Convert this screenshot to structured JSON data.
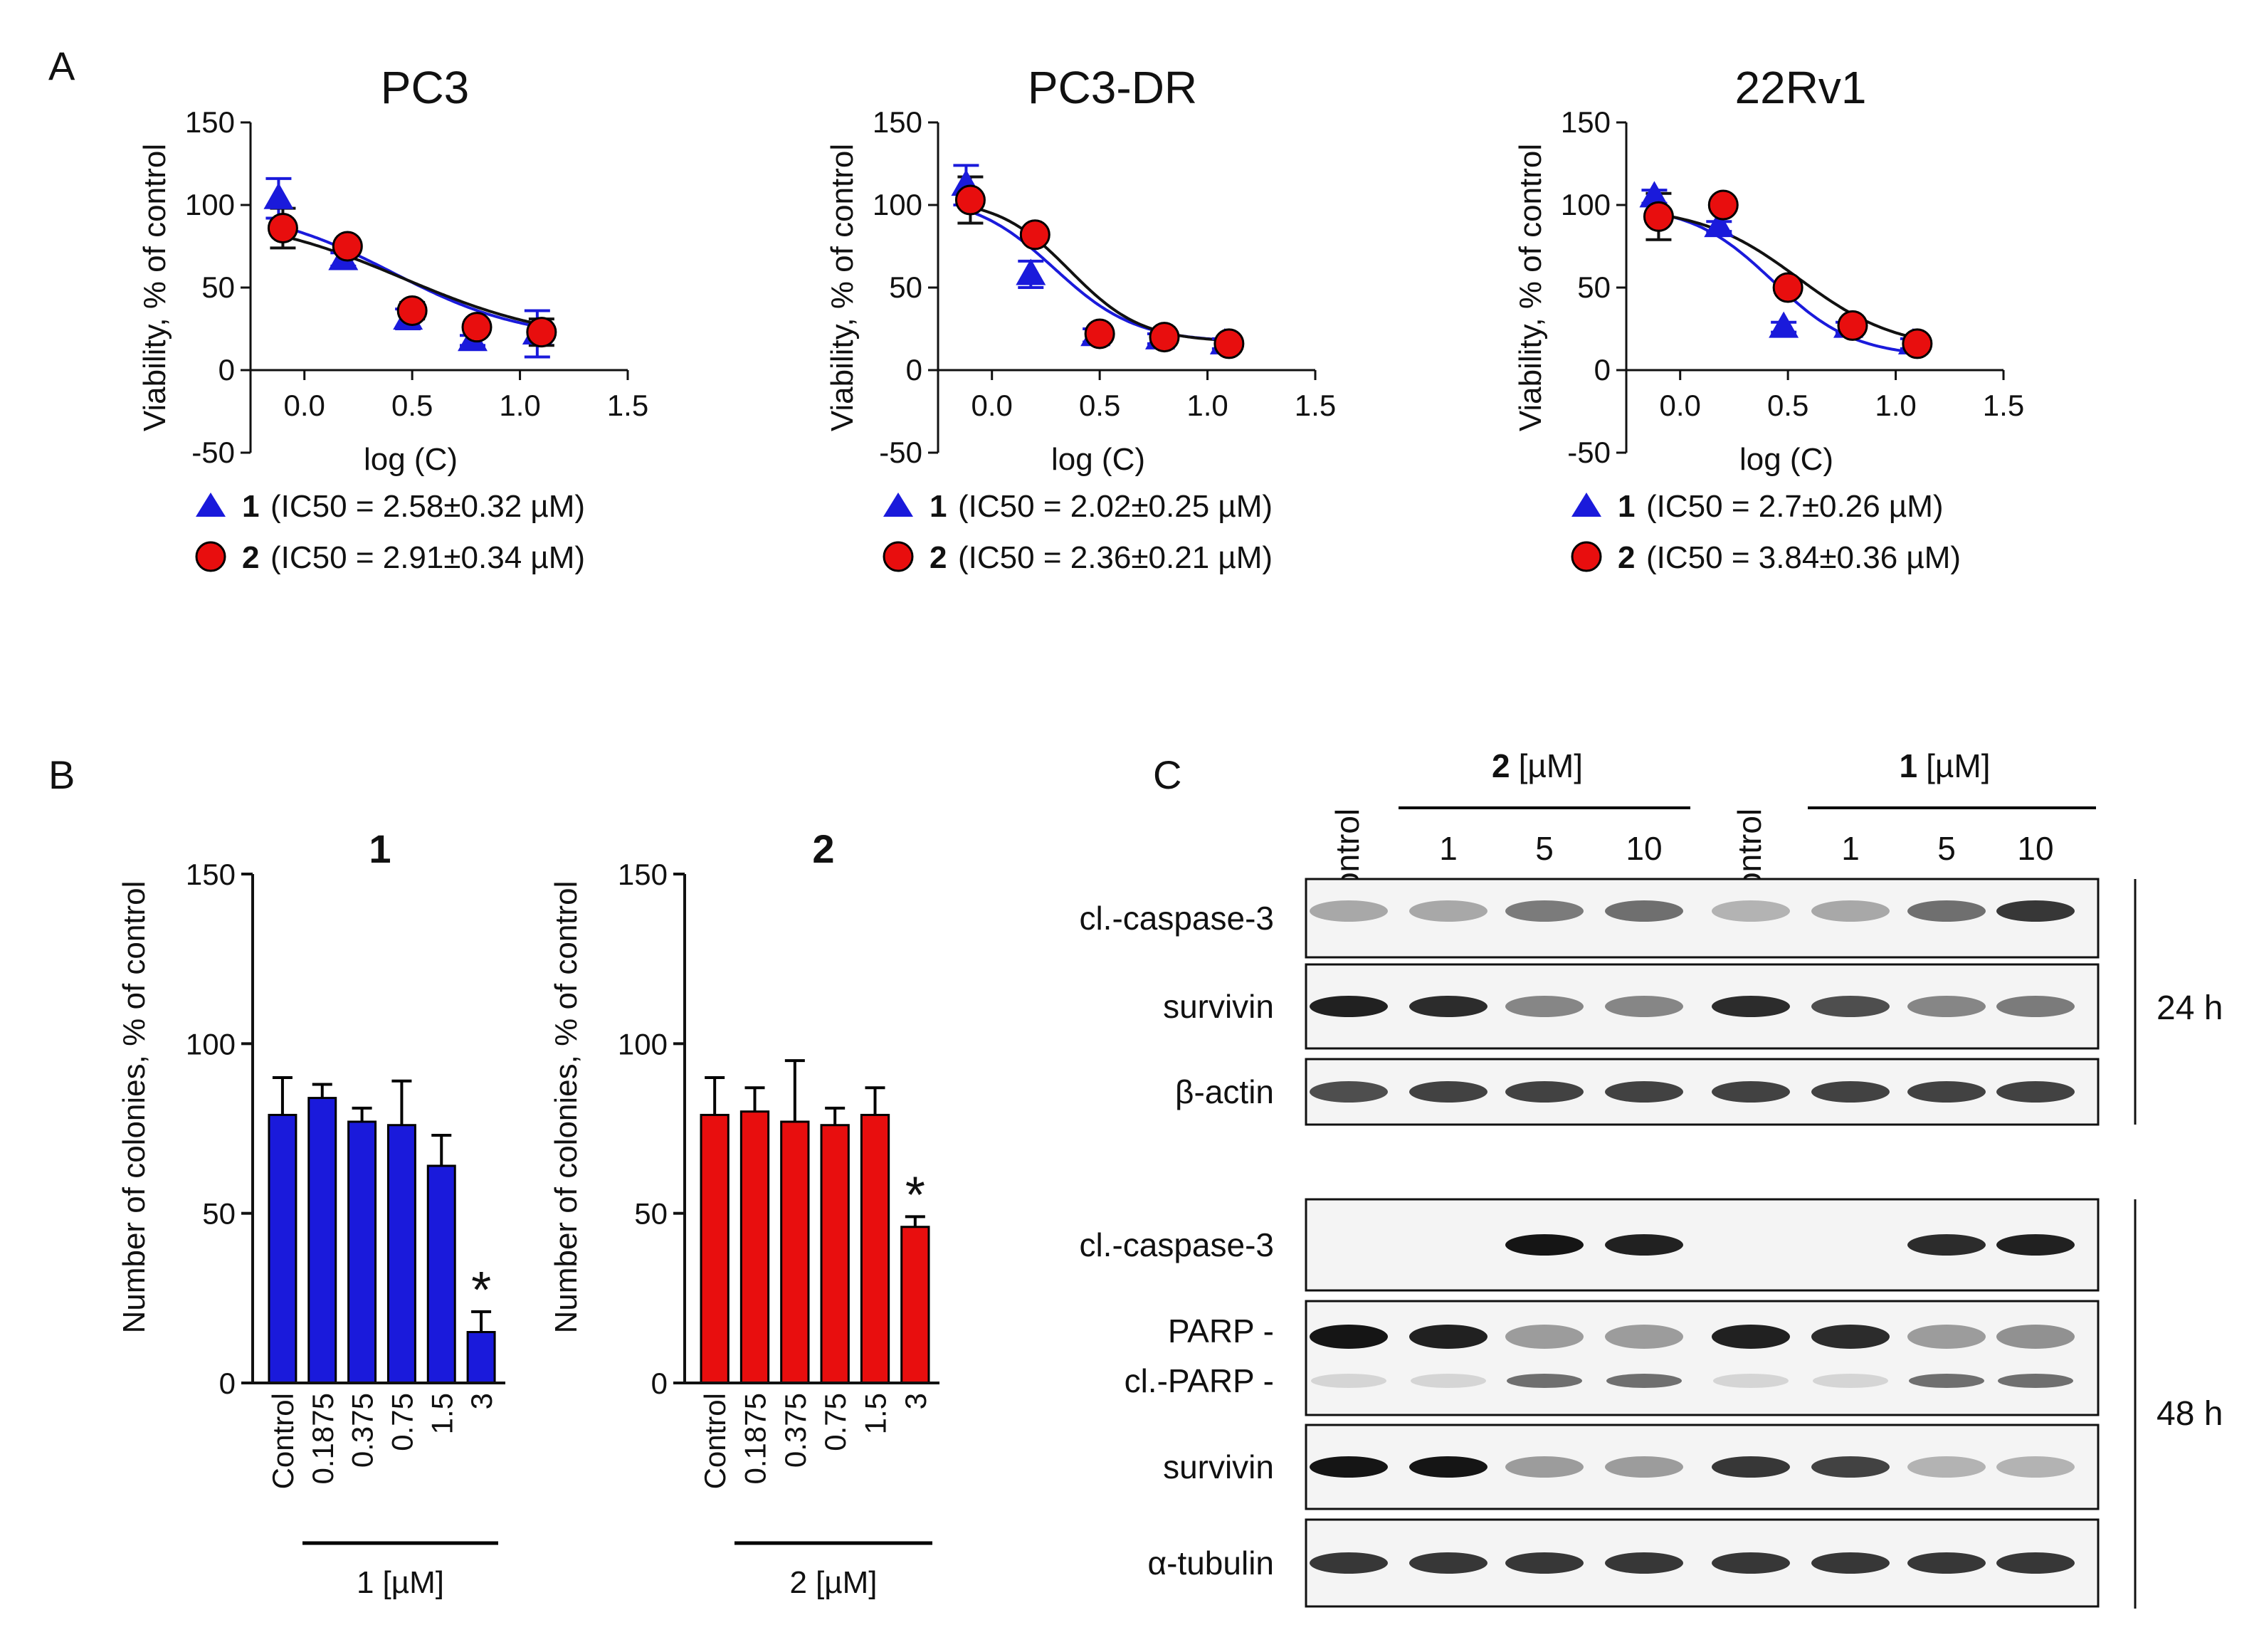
{
  "panel_labels": {
    "A": "A",
    "B": "B",
    "C": "C"
  },
  "colors": {
    "compound1": "#1a1adb",
    "compound2": "#e80e0e",
    "fit2": "#111111",
    "axis": "#111111"
  },
  "chart_data": [
    {
      "type": "scatter",
      "title": "PC3",
      "xlabel": "log (C)",
      "ylabel": "Viability, % of control",
      "xlim": [
        -0.25,
        1.5
      ],
      "ylim": [
        -50,
        150
      ],
      "xticks": [
        "0.0",
        "0.5",
        "1.0",
        "1.5"
      ],
      "yticks": [
        "150",
        "100",
        "50",
        "0",
        "-50"
      ],
      "legend_placement": "bottom",
      "series": [
        {
          "name": "1",
          "legend_suffix": "(IC50 = 2.58±0.32 µM)",
          "marker": "triangle",
          "x": [
            -0.1,
            0.2,
            0.5,
            0.8,
            1.1
          ],
          "y": [
            104,
            67,
            31,
            18,
            22
          ],
          "err": [
            12,
            4,
            6,
            3,
            14
          ],
          "fit": {
            "top": 100,
            "bottom": 18,
            "logIC50": 0.41,
            "hill": 1.4
          }
        },
        {
          "name": "2",
          "legend_suffix": "(IC50 = 2.91±0.34 µM)",
          "marker": "circle",
          "x": [
            -0.1,
            0.2,
            0.5,
            0.8,
            1.1
          ],
          "y": [
            86,
            75,
            36,
            26,
            23
          ],
          "err": [
            12,
            4,
            5,
            4,
            8
          ],
          "fit": {
            "top": 95,
            "bottom": 16,
            "logIC50": 0.46,
            "hill": 1.2
          }
        }
      ]
    },
    {
      "type": "scatter",
      "title": "PC3-DR",
      "xlabel": "log (C)",
      "ylabel": "Viability, % of control",
      "xlim": [
        -0.25,
        1.5
      ],
      "ylim": [
        -50,
        150
      ],
      "xticks": [
        "0.0",
        "0.5",
        "1.0",
        "1.5"
      ],
      "yticks": [
        "150",
        "100",
        "50",
        "0",
        "-50"
      ],
      "legend_placement": "bottom",
      "series": [
        {
          "name": "1",
          "legend_suffix": "(IC50 = 2.02±0.25 µM)",
          "marker": "triangle",
          "x": [
            -0.1,
            0.2,
            0.5,
            0.8,
            1.1
          ],
          "y": [
            112,
            58,
            21,
            19,
            16
          ],
          "err": [
            12,
            8,
            4,
            3,
            3
          ],
          "fit": {
            "top": 106,
            "bottom": 17,
            "logIC50": 0.29,
            "hill": 2.3
          }
        },
        {
          "name": "2",
          "legend_suffix": "(IC50 = 2.36±0.21 µM)",
          "marker": "circle",
          "x": [
            -0.1,
            0.2,
            0.5,
            0.8,
            1.1
          ],
          "y": [
            103,
            82,
            22,
            20,
            16
          ],
          "err": [
            14,
            4,
            4,
            3,
            3
          ],
          "fit": {
            "top": 104,
            "bottom": 17,
            "logIC50": 0.36,
            "hill": 2.6
          }
        }
      ]
    },
    {
      "type": "scatter",
      "title": "22Rv1",
      "xlabel": "log (C)",
      "ylabel": "Viability, % of control",
      "xlim": [
        -0.25,
        1.5
      ],
      "ylim": [
        -50,
        150
      ],
      "xticks": [
        "0.0",
        "0.5",
        "1.0",
        "1.5"
      ],
      "yticks": [
        "150",
        "100",
        "50",
        "0",
        "-50"
      ],
      "legend_placement": "bottom",
      "series": [
        {
          "name": "1",
          "legend_suffix": "(IC50 = 2.7±0.26 µM)",
          "marker": "triangle",
          "x": [
            -0.1,
            0.2,
            0.5,
            0.8,
            1.1
          ],
          "y": [
            105,
            87,
            26,
            26,
            16
          ],
          "err": [
            4,
            3,
            3,
            3,
            3
          ],
          "fit": {
            "top": 100,
            "bottom": 8,
            "logIC50": 0.43,
            "hill": 2.3
          }
        },
        {
          "name": "2",
          "legend_suffix": "(IC50 = 3.84±0.36 µM)",
          "marker": "circle",
          "x": [
            -0.1,
            0.2,
            0.5,
            0.8,
            1.1
          ],
          "y": [
            93,
            100,
            50,
            27,
            16
          ],
          "err": [
            14,
            4,
            4,
            3,
            3
          ],
          "fit": {
            "top": 99,
            "bottom": 12,
            "logIC50": 0.55,
            "hill": 1.9
          }
        }
      ]
    },
    {
      "type": "bar",
      "title": "1",
      "ylabel": "Number of colonies, % of control",
      "ylim": [
        0,
        150
      ],
      "yticks": [
        "150",
        "100",
        "50",
        "0"
      ],
      "categories": [
        "Control",
        "0.1875",
        "0.375",
        "0.75",
        "1.5",
        "3"
      ],
      "values": [
        79,
        84,
        77,
        76,
        64,
        15
      ],
      "err": [
        11,
        4,
        4,
        13,
        9,
        6
      ],
      "significant": [
        false,
        false,
        false,
        false,
        false,
        true
      ],
      "significance_mark": "*",
      "group_label_number": "1",
      "group_label_unit": "[µM]"
    },
    {
      "type": "bar",
      "title": "2",
      "ylabel": "Number of colonies, % of control",
      "ylim": [
        0,
        150
      ],
      "yticks": [
        "150",
        "100",
        "50",
        "0"
      ],
      "categories": [
        "Control",
        "0.1875",
        "0.375",
        "0.75",
        "1.5",
        "3"
      ],
      "values": [
        79,
        80,
        77,
        76,
        79,
        46
      ],
      "err": [
        11,
        7,
        18,
        5,
        8,
        3
      ],
      "significant": [
        false,
        false,
        false,
        false,
        false,
        true
      ],
      "significance_mark": "*",
      "group_label_number": "2",
      "group_label_unit": "[µM]"
    }
  ],
  "western_blot": {
    "lanes": [
      "Control",
      "1",
      "5",
      "10",
      "Control",
      "1",
      "5",
      "10"
    ],
    "group_headers": [
      {
        "compound": "2",
        "unit": "[µM]"
      },
      {
        "compound": "1",
        "unit": "[µM]"
      }
    ],
    "time_labels": [
      "24 h",
      "48 h"
    ],
    "rows_24h": [
      {
        "label": "cl.-caspase-3",
        "intensity": [
          0.3,
          0.3,
          0.5,
          0.55,
          0.25,
          0.3,
          0.55,
          0.8
        ]
      },
      {
        "label": "survivin",
        "intensity": [
          0.9,
          0.85,
          0.45,
          0.45,
          0.85,
          0.7,
          0.45,
          0.5
        ]
      },
      {
        "label": "β-actin",
        "intensity": [
          0.7,
          0.75,
          0.75,
          0.75,
          0.75,
          0.75,
          0.75,
          0.75
        ]
      }
    ],
    "rows_48h": [
      {
        "label": "cl.-caspase-3",
        "intensity": [
          0,
          0,
          0.95,
          0.9,
          0,
          0,
          0.85,
          0.9
        ]
      },
      {
        "label": "PARP -",
        "label2": "cl.-PARP -",
        "intensity": [
          0.95,
          0.9,
          0.35,
          0.35,
          0.9,
          0.85,
          0.35,
          0.4
        ],
        "intensity2": [
          0.1,
          0.1,
          0.55,
          0.55,
          0.1,
          0.1,
          0.55,
          0.55
        ]
      },
      {
        "label": "survivin",
        "intensity": [
          0.95,
          0.95,
          0.35,
          0.35,
          0.8,
          0.75,
          0.25,
          0.25
        ]
      },
      {
        "label": "α-tubulin",
        "intensity": [
          0.8,
          0.8,
          0.8,
          0.8,
          0.8,
          0.8,
          0.8,
          0.8
        ]
      }
    ]
  }
}
